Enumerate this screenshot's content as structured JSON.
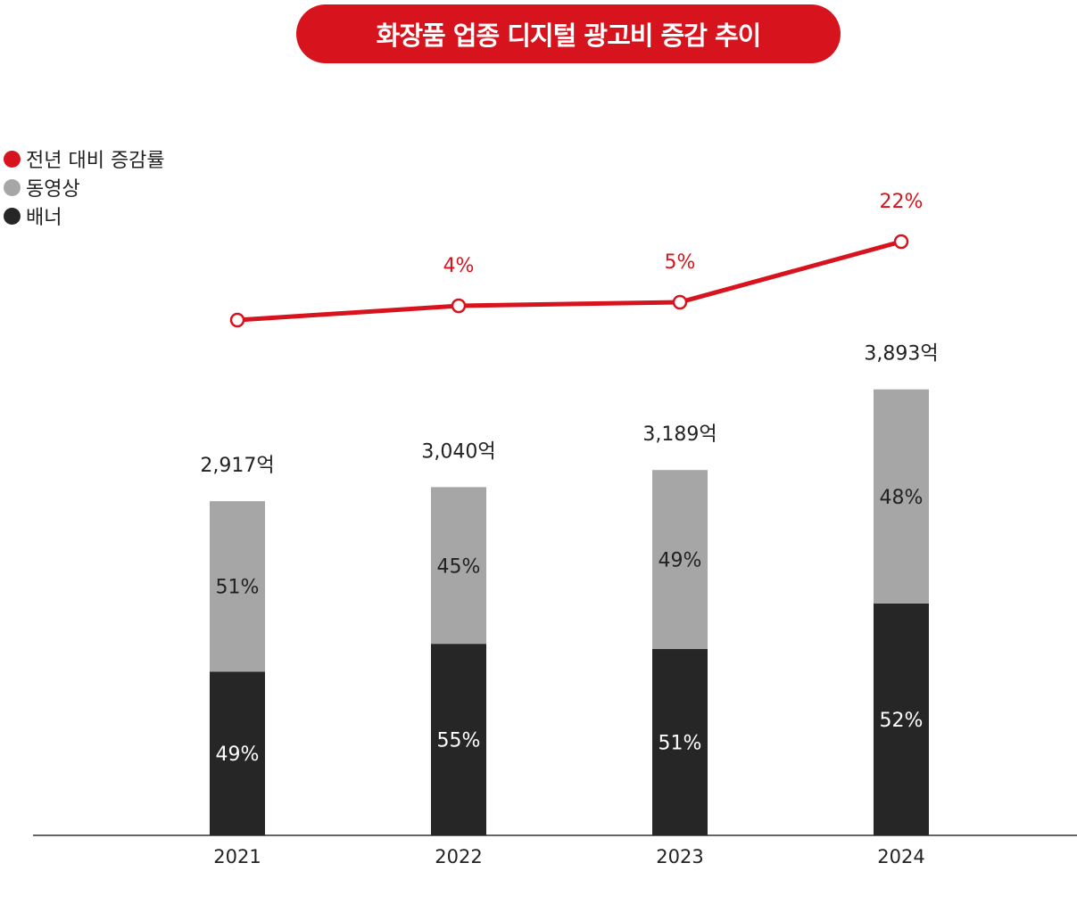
{
  "title": "화장품 업종 디지털 광고비 증감 추이",
  "legend": [
    {
      "label": "전년 대비 증감률",
      "color": "#d7141e"
    },
    {
      "label": "동영상",
      "color": "#a6a6a6"
    },
    {
      "label": "배너",
      "color": "#262626"
    }
  ],
  "chart_data": {
    "type": "bar",
    "categories": [
      "2021",
      "2022",
      "2023",
      "2024"
    ],
    "totals": [
      2917,
      3040,
      3189,
      3893
    ],
    "total_labels": [
      "2,917억",
      "3,040억",
      "3,189억",
      "3,893억"
    ],
    "unit": "억",
    "series": [
      {
        "name": "배너",
        "values": [
          49,
          55,
          51,
          52
        ],
        "labels": [
          "49%",
          "55%",
          "51%",
          "52%"
        ],
        "color": "#262626"
      },
      {
        "name": "동영상",
        "values": [
          51,
          45,
          49,
          48
        ],
        "labels": [
          "51%",
          "45%",
          "49%",
          "48%"
        ],
        "color": "#a6a6a6"
      }
    ],
    "growth": {
      "name": "전년 대비 증감률",
      "values": [
        null,
        4,
        5,
        22
      ],
      "labels": [
        "",
        "4%",
        "5%",
        "22%"
      ],
      "color": "#d7141e"
    }
  }
}
